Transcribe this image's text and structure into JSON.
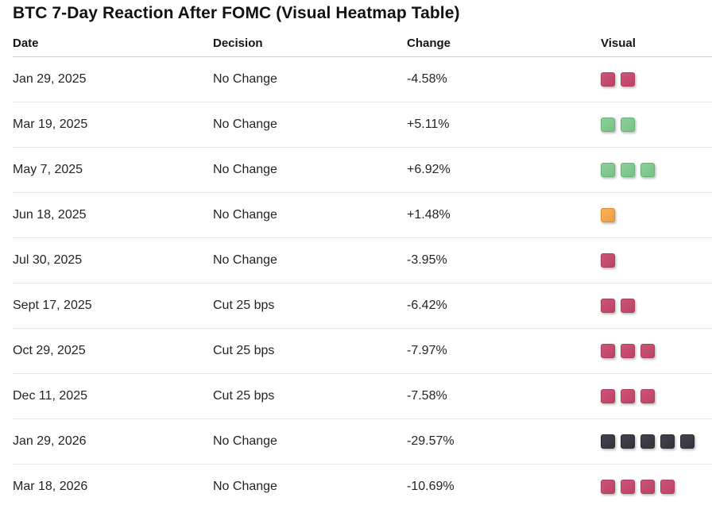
{
  "title": "BTC 7-Day Reaction After FOMC (Visual Heatmap Table)",
  "colors": {
    "red": "#c24b6e",
    "green": "#7fc98e",
    "orange": "#f2a64d",
    "dark": "#3b3842",
    "header_border": "#cfcfcf",
    "row_border": "#e8e8e8"
  },
  "chart_data": {
    "type": "heatmap",
    "title": "BTC 7-Day Reaction After FOMC (Visual Heatmap Table)",
    "columns": [
      "Date",
      "Decision",
      "Change",
      "Visual"
    ],
    "legend_position": "none",
    "grid": "horizontal-row-separators",
    "rows": [
      {
        "date": "Jan 29, 2025",
        "decision": "No Change",
        "change": "-4.58%",
        "change_pct": -4.58,
        "blocks": 2,
        "block_color": "red"
      },
      {
        "date": "Mar 19, 2025",
        "decision": "No Change",
        "change": "+5.11%",
        "change_pct": 5.11,
        "blocks": 2,
        "block_color": "green"
      },
      {
        "date": "May 7, 2025",
        "decision": "No Change",
        "change": "+6.92%",
        "change_pct": 6.92,
        "blocks": 3,
        "block_color": "green"
      },
      {
        "date": "Jun 18, 2025",
        "decision": "No Change",
        "change": "+1.48%",
        "change_pct": 1.48,
        "blocks": 1,
        "block_color": "orange"
      },
      {
        "date": "Jul 30, 2025",
        "decision": "No Change",
        "change": "-3.95%",
        "change_pct": -3.95,
        "blocks": 1,
        "block_color": "red"
      },
      {
        "date": "Sept 17, 2025",
        "decision": "Cut 25 bps",
        "change": "-6.42%",
        "change_pct": -6.42,
        "blocks": 2,
        "block_color": "red"
      },
      {
        "date": "Oct 29, 2025",
        "decision": "Cut 25 bps",
        "change": "-7.97%",
        "change_pct": -7.97,
        "blocks": 3,
        "block_color": "red"
      },
      {
        "date": "Dec 11, 2025",
        "decision": "Cut 25 bps",
        "change": "-7.58%",
        "change_pct": -7.58,
        "blocks": 3,
        "block_color": "red"
      },
      {
        "date": "Jan 29, 2026",
        "decision": "No Change",
        "change": "-29.57%",
        "change_pct": -29.57,
        "blocks": 5,
        "block_color": "dark"
      },
      {
        "date": "Mar 18, 2026",
        "decision": "No Change",
        "change": "-10.69%",
        "change_pct": -10.69,
        "blocks": 4,
        "block_color": "red"
      }
    ]
  }
}
